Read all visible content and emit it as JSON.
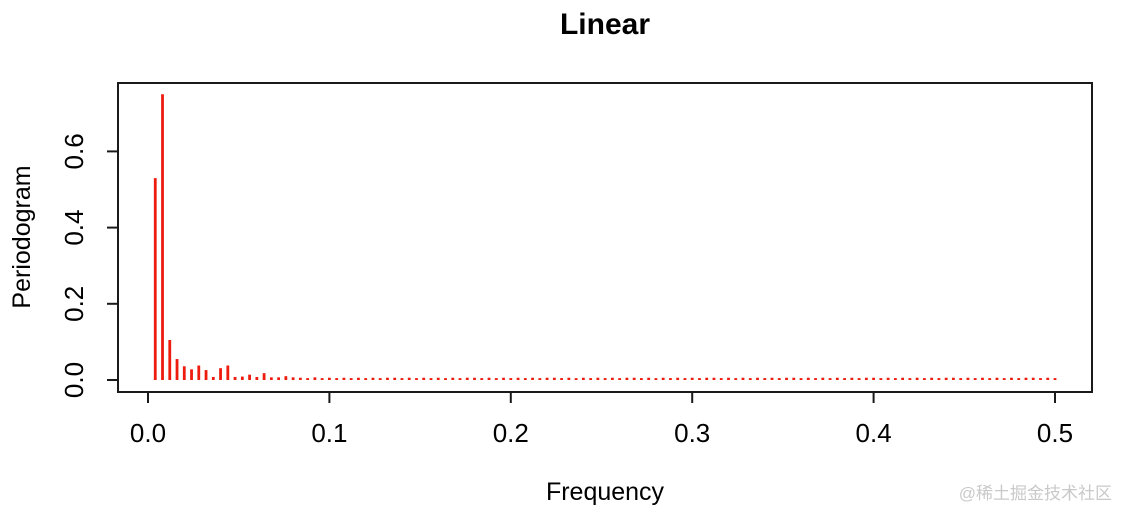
{
  "figure": {
    "title": "Linear",
    "watermark": "@稀土掘金技术社区"
  },
  "chart_data": {
    "type": "bar",
    "subtype": "periodogram-spike-plot",
    "title": "Linear",
    "xlabel": "Frequency",
    "ylabel": "Periodogram",
    "grid": false,
    "legend": null,
    "bar_color": "#ed1c0f",
    "axis_color": "#1a1a1a",
    "xlim": [
      -0.0165,
      0.5165
    ],
    "ylim": [
      -0.031,
      0.781
    ],
    "x_tick_values": [
      0.0,
      0.1,
      0.2,
      0.3,
      0.4,
      0.5
    ],
    "x_tick_labels": [
      "0.0",
      "0.1",
      "0.2",
      "0.3",
      "0.4",
      "0.5"
    ],
    "y_tick_values": [
      0.0,
      0.2,
      0.4,
      0.6
    ],
    "y_tick_labels": [
      "0.0",
      "0.2",
      "0.4",
      "0.6"
    ],
    "frequency_start": 0.004,
    "frequency_step": 0.004,
    "n_frequencies": 125,
    "values": [
      0.53,
      0.75,
      0.105,
      0.055,
      0.036,
      0.028,
      0.038,
      0.026,
      0.008,
      0.031,
      0.038,
      0.008,
      0.009,
      0.014,
      0.008,
      0.018,
      0.007,
      0.007,
      0.01,
      0.007,
      0.006,
      0.005,
      0.007,
      0.005,
      0.006,
      0.005,
      0.006,
      0.005,
      0.006,
      0.005,
      0.006,
      0.005,
      0.006,
      0.006,
      0.005,
      0.006,
      0.005,
      0.006,
      0.005,
      0.006,
      0.005,
      0.006,
      0.005,
      0.006,
      0.006,
      0.005,
      0.006,
      0.005,
      0.006,
      0.005,
      0.006,
      0.005,
      0.006,
      0.005,
      0.006,
      0.006,
      0.005,
      0.006,
      0.005,
      0.006,
      0.005,
      0.006,
      0.005,
      0.006,
      0.005,
      0.006,
      0.006,
      0.005,
      0.006,
      0.005,
      0.006,
      0.005,
      0.006,
      0.005,
      0.006,
      0.005,
      0.006,
      0.006,
      0.005,
      0.006,
      0.005,
      0.006,
      0.005,
      0.006,
      0.005,
      0.006,
      0.005,
      0.006,
      0.006,
      0.005,
      0.006,
      0.005,
      0.006,
      0.005,
      0.006,
      0.005,
      0.006,
      0.005,
      0.006,
      0.006,
      0.005,
      0.006,
      0.005,
      0.006,
      0.005,
      0.006,
      0.005,
      0.006,
      0.005,
      0.006,
      0.006,
      0.005,
      0.006,
      0.005,
      0.006,
      0.005,
      0.006,
      0.005,
      0.006,
      0.005,
      0.006,
      0.006,
      0.005,
      0.006,
      0.005
    ]
  }
}
